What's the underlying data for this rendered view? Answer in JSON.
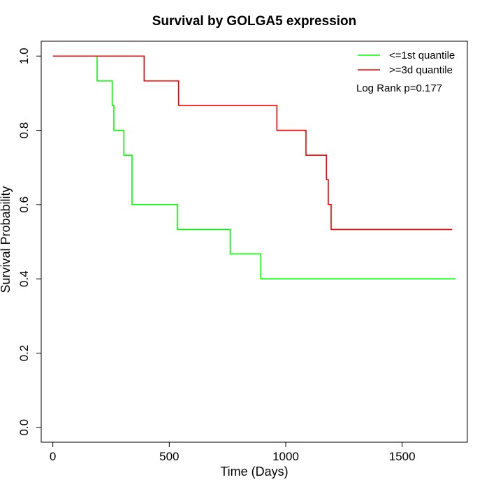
{
  "chart_data": {
    "type": "line",
    "title": "Survival by GOLGA5 expression",
    "xlabel": "Time (Days)",
    "ylabel": "Survival Probability",
    "xlim": [
      -50,
      1780
    ],
    "ylim": [
      -0.04,
      1.04
    ],
    "xticks": [
      0,
      500,
      1000,
      1500
    ],
    "yticks": [
      0.0,
      0.2,
      0.4,
      0.6,
      0.8,
      1.0
    ],
    "xtick_labels": [
      "0",
      "500",
      "1000",
      "1500"
    ],
    "ytick_labels": [
      "0.0",
      "0.2",
      "0.4",
      "0.6",
      "0.8",
      "1.0"
    ],
    "legend_position": "top-right",
    "annotation": "Log Rank p=0.177",
    "series": [
      {
        "name": "<=1st quantile",
        "color": "#00ff00",
        "step": true,
        "x": [
          0,
          190,
          255,
          262,
          305,
          340,
          535,
          762,
          893,
          1730
        ],
        "y": [
          1.0,
          0.933,
          0.867,
          0.8,
          0.733,
          0.6,
          0.533,
          0.467,
          0.4,
          0.4
        ]
      },
      {
        "name": ">=3d quantile",
        "color": "#ff0000",
        "step": true,
        "x": [
          0,
          392,
          540,
          962,
          1087,
          1175,
          1183,
          1195,
          1715
        ],
        "y": [
          1.0,
          0.933,
          0.867,
          0.8,
          0.733,
          0.667,
          0.6,
          0.533,
          0.533
        ]
      }
    ]
  }
}
